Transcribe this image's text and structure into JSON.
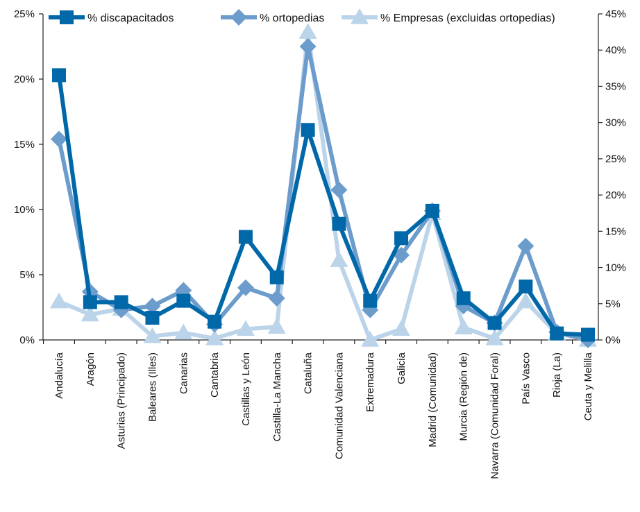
{
  "chart_data": {
    "type": "line",
    "categories": [
      "Andalucía",
      "Aragón",
      "Asturias (Principado)",
      "Baleares (Illes)",
      "Canarias",
      "Cantabria",
      "Castillas y León",
      "Castilla-La Mancha",
      "Cataluña",
      "Comunidad Valenciana",
      "Extremadura",
      "Galicia",
      "Madrid (Comunidad)",
      "Murcia (Región de)",
      "Navarra (Comunidad Foral)",
      "País Vasco",
      "Rioja (La)",
      "Ceuta y Melilla"
    ],
    "left_axis": {
      "ylim": [
        0,
        25
      ],
      "ticks": [
        0,
        5,
        10,
        15,
        20,
        25
      ],
      "tick_labels": [
        "0%",
        "5%",
        "10%",
        "15%",
        "20%",
        "25%"
      ]
    },
    "right_axis": {
      "ylim": [
        0,
        45
      ],
      "ticks": [
        0,
        5,
        10,
        15,
        20,
        25,
        30,
        35,
        40,
        45
      ],
      "tick_labels": [
        "0%",
        "5%",
        "10%",
        "15%",
        "20%",
        "25%",
        "30%",
        "35%",
        "40%",
        "45%"
      ]
    },
    "legend_position": "top",
    "series": [
      {
        "name": "% discapacitados",
        "axis": "left",
        "marker": "square",
        "color": "#0068a8",
        "values": [
          20.3,
          2.9,
          2.9,
          1.7,
          3.0,
          1.4,
          7.9,
          4.8,
          16.1,
          8.9,
          3.0,
          7.8,
          9.9,
          3.2,
          1.3,
          4.1,
          0.5,
          0.4
        ]
      },
      {
        "name": "% ortopedias",
        "axis": "left",
        "marker": "diamond",
        "color": "#6b9ccc",
        "values": [
          15.4,
          3.7,
          2.3,
          2.6,
          3.8,
          1.2,
          4.0,
          3.2,
          22.5,
          11.5,
          2.3,
          6.5,
          9.9,
          2.6,
          1.3,
          7.2,
          0.6,
          0.0
        ]
      },
      {
        "name": "% Empresas (excluidas ortopedias)",
        "axis": "right",
        "marker": "triangle",
        "color": "#bcd4ea",
        "values": [
          5.3,
          3.5,
          4.3,
          0.5,
          1.0,
          0.2,
          1.5,
          1.8,
          42.5,
          11.0,
          0.0,
          1.5,
          17.5,
          1.7,
          0.2,
          5.3,
          0.9,
          0.0
        ]
      }
    ]
  }
}
